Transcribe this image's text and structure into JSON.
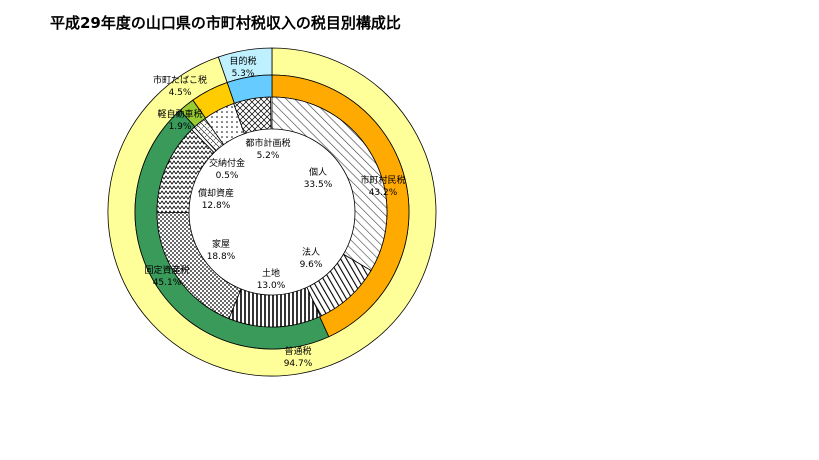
{
  "chart_data": {
    "type": "pie",
    "title": "平成29年度の山口県の市町村税収入の税目別構成比",
    "outer_ring": [
      {
        "name": "普通税",
        "value": 94.7,
        "label": "94.7%",
        "color": "#ffff99"
      },
      {
        "name": "目的税",
        "value": 5.3,
        "label": "5.3%",
        "color": "#bff0ff"
      }
    ],
    "middle_ring": [
      {
        "name": "市町村民税",
        "value": 43.2,
        "label": "43.2%",
        "color": "#ffaa00"
      },
      {
        "name": "固定資産税",
        "value": 45.1,
        "label": "45.1%",
        "color": "#3a9a5a"
      },
      {
        "name": "軽自動車税",
        "value": 1.9,
        "label": "1.9%",
        "color": "#99cc33"
      },
      {
        "name": "市町たばこ税",
        "value": 4.5,
        "label": "4.5%",
        "color": "#ffcc00"
      },
      {
        "name": "目的税",
        "value": 5.3,
        "label": "",
        "color": "#66ccff"
      }
    ],
    "inner_ring": [
      {
        "name": "個人",
        "value": 33.5,
        "label": "33.5%",
        "pattern": "vlines"
      },
      {
        "name": "法人",
        "value": 9.6,
        "label": "9.6%",
        "pattern": "bigvlines"
      },
      {
        "name": "土地",
        "value": 13.0,
        "label": "13.0%",
        "pattern": "fillvlines"
      },
      {
        "name": "家屋",
        "value": 18.8,
        "label": "18.8%",
        "pattern": "dots"
      },
      {
        "name": "償却資産",
        "value": 12.8,
        "label": "12.8%",
        "pattern": "zigzag"
      },
      {
        "name": "交納付金",
        "value": 0.5,
        "label": "0.5%",
        "pattern": "white"
      },
      {
        "name": "軽自動車税",
        "value": 1.9,
        "label": "",
        "pattern": "plaid"
      },
      {
        "name": "市町たばこ税",
        "value": 4.5,
        "label": "",
        "pattern": "dots2"
      },
      {
        "name": "都市計画税",
        "value": 5.2,
        "label": "5.2%",
        "pattern": "crosshatch"
      }
    ]
  }
}
